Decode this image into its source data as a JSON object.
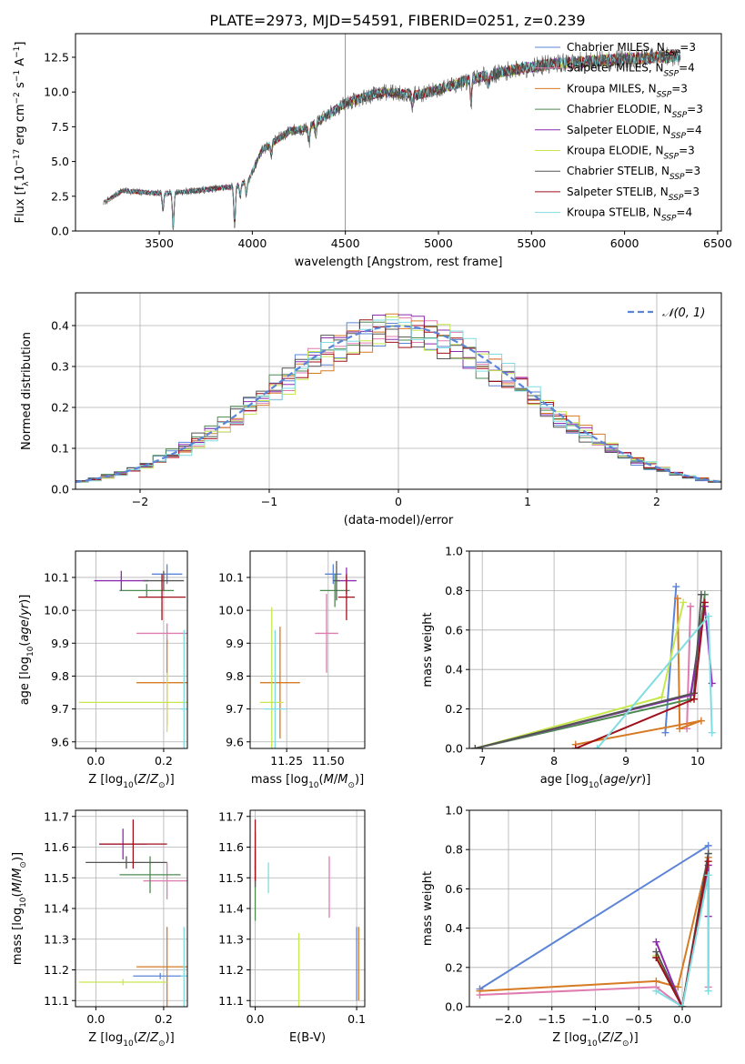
{
  "figure": {
    "title": "PLATE=2973, MJD=54591, FIBERID=0251, z=0.239"
  },
  "colors": {
    "chabrier_miles": "#5b84d6",
    "salpeter_miles": "#e07bb0",
    "kroupa_miles": "#d77a24",
    "chabrier_elodie": "#4d8a52",
    "salpeter_elodie": "#8e2bb0",
    "kroupa_elodie": "#c6e84d",
    "chabrier_stelib": "#555555",
    "salpeter_stelib": "#a0101a",
    "kroupa_stelib": "#7fdde2",
    "normal_curve": "#5b84d6",
    "grid": "#b0b0b0"
  },
  "chart_data": [
    {
      "id": "spectrum",
      "type": "line",
      "title": "PLATE=2973, MJD=54591, FIBERID=0251, z=0.239",
      "xlabel": "wavelength [Angstrom, rest frame]",
      "ylabel_parts": [
        "Flux [f",
        "λ",
        "10",
        "−17",
        " erg cm",
        "−2",
        " s",
        "−1",
        " A",
        "−1",
        "]"
      ],
      "xlim": [
        3050,
        6520
      ],
      "ylim": [
        0,
        14.2
      ],
      "xticks": [
        "3500",
        "4000",
        "4500",
        "5000",
        "5500",
        "6000",
        "6500"
      ],
      "yticks": [
        "0.0",
        "2.5",
        "5.0",
        "7.5",
        "10.0",
        "12.5"
      ],
      "grid": false,
      "legend_position": "top-right",
      "legend": [
        {
          "label": "Chabrier MILES, N",
          "sub": "SSP",
          "tail": "=3",
          "color_key": "chabrier_miles"
        },
        {
          "label": "Salpeter MILES, N",
          "sub": "SSP",
          "tail": "=4",
          "color_key": "salpeter_miles"
        },
        {
          "label": "Kroupa MILES, N",
          "sub": "SSP",
          "tail": "=3",
          "color_key": "kroupa_miles"
        },
        {
          "label": "Chabrier ELODIE, N",
          "sub": "SSP",
          "tail": "=3",
          "color_key": "chabrier_elodie"
        },
        {
          "label": "Salpeter ELODIE, N",
          "sub": "SSP",
          "tail": "=4",
          "color_key": "salpeter_elodie"
        },
        {
          "label": "Kroupa ELODIE, N",
          "sub": "SSP",
          "tail": "=3",
          "color_key": "kroupa_elodie"
        },
        {
          "label": "Chabrier STELIB, N",
          "sub": "SSP",
          "tail": "=3",
          "color_key": "chabrier_stelib"
        },
        {
          "label": "Salpeter STELIB, N",
          "sub": "SSP",
          "tail": "=3",
          "color_key": "salpeter_stelib"
        },
        {
          "label": "Kroupa STELIB, N",
          "sub": "SSP",
          "tail": "=4",
          "color_key": "kroupa_stelib"
        }
      ],
      "continuum": [
        [
          3200,
          2.0
        ],
        [
          3300,
          2.9
        ],
        [
          3500,
          2.7
        ],
        [
          3700,
          2.9
        ],
        [
          3900,
          3.2
        ],
        [
          3980,
          3.6
        ],
        [
          4050,
          5.8
        ],
        [
          4200,
          7.2
        ],
        [
          4300,
          7.4
        ],
        [
          4500,
          9.2
        ],
        [
          4700,
          10.0
        ],
        [
          4900,
          9.8
        ],
        [
          5000,
          10.2
        ],
        [
          5200,
          11.0
        ],
        [
          5400,
          11.6
        ],
        [
          5600,
          12.0
        ],
        [
          5800,
          12.2
        ],
        [
          6000,
          12.4
        ],
        [
          6200,
          12.5
        ],
        [
          6300,
          12.6
        ]
      ],
      "features": [
        [
          3520,
          -1.4
        ],
        [
          3575,
          -2.8
        ],
        [
          3905,
          -3.2
        ],
        [
          3935,
          -1.0
        ],
        [
          3968,
          -1.0
        ],
        [
          4102,
          -0.9
        ],
        [
          4305,
          -1.2
        ],
        [
          4340,
          -0.9
        ],
        [
          4861,
          -0.8
        ],
        [
          5175,
          -2.0
        ],
        [
          5270,
          -0.8
        ]
      ],
      "sky_line": {
        "x": 4500,
        "y_top": 14.2
      }
    },
    {
      "id": "residuals",
      "type": "histogram",
      "xlabel": "(data-model)/error",
      "ylabel": "Normed distribution",
      "xlim": [
        -2.5,
        2.5
      ],
      "ylim": [
        0,
        0.48
      ],
      "xticks": [
        "−2",
        "−1",
        "0",
        "1",
        "2"
      ],
      "yticks": [
        "0.0",
        "0.1",
        "0.2",
        "0.3",
        "0.4"
      ],
      "grid": true,
      "legend_position": "top-right",
      "legend": [
        {
          "label": "𝒩(0, 1)",
          "style": "dashed",
          "color_key": "normal_curve"
        }
      ],
      "bin_width": 0.1
    },
    {
      "id": "age_vs_metallicity",
      "type": "errorbar",
      "xlabel": "Z [log10(Z/Z⊙)]",
      "ylabel": "age  [log10(age/yr)]",
      "xlim": [
        -0.06,
        0.27
      ],
      "ylim": [
        9.58,
        10.18
      ],
      "xticks": [
        "0.0",
        "0.2"
      ],
      "yticks": [
        "9.6",
        "9.7",
        "9.8",
        "9.9",
        "10.0",
        "10.1"
      ],
      "grid": true,
      "points": [
        {
          "key": "chabrier_miles",
          "x": 0.21,
          "xerr": 0.045,
          "y": 10.11,
          "yerr": 0.03
        },
        {
          "key": "salpeter_miles",
          "x": 0.21,
          "xerr": 0.09,
          "y": 9.93,
          "yerr": 0.03
        },
        {
          "key": "kroupa_miles",
          "x": 0.21,
          "xerr": 0.09,
          "y": 9.78,
          "yerr": 0.13
        },
        {
          "key": "chabrier_elodie",
          "x": 0.15,
          "xerr": 0.08,
          "y": 10.06,
          "yerr": 0.02
        },
        {
          "key": "salpeter_elodie",
          "x": 0.075,
          "xerr": 0.08,
          "y": 10.09,
          "yerr": 0.03
        },
        {
          "key": "kroupa_elodie",
          "x": 0.21,
          "xerr": 0.26,
          "y": 9.72,
          "yerr": 0.09
        },
        {
          "key": "chabrier_stelib",
          "x": 0.2,
          "xerr": 0.06,
          "y": 10.09,
          "yerr": 0.03
        },
        {
          "key": "salpeter_stelib",
          "x": 0.195,
          "xerr": 0.07,
          "y": 10.04,
          "yerr": 0.07
        },
        {
          "key": "kroupa_stelib",
          "x": 0.26,
          "xerr": 0.01,
          "y": 9.7,
          "yerr": 0.24
        }
      ]
    },
    {
      "id": "age_vs_mass",
      "type": "errorbar",
      "xlabel": "mass [log10(M/M⊙)]",
      "ylabel": "",
      "xlim": [
        11.03,
        11.72
      ],
      "ylim": [
        9.58,
        10.18
      ],
      "xticks": [
        "11.25",
        "11.50"
      ],
      "yticks": [
        "9.6",
        "9.7",
        "9.8",
        "9.9",
        "10.0",
        "10.1"
      ],
      "grid": true,
      "points": [
        {
          "key": "chabrier_miles",
          "x": 11.53,
          "xerr": 0.05,
          "y": 10.11,
          "yerr": 0.03
        },
        {
          "key": "salpeter_miles",
          "x": 11.49,
          "xerr": 0.07,
          "y": 9.93,
          "yerr": 0.12
        },
        {
          "key": "kroupa_miles",
          "x": 11.21,
          "xerr": 0.12,
          "y": 9.78,
          "yerr": 0.17
        },
        {
          "key": "chabrier_elodie",
          "x": 11.54,
          "xerr": 0.09,
          "y": 10.06,
          "yerr": 0.05
        },
        {
          "key": "salpeter_elodie",
          "x": 11.61,
          "xerr": 0.06,
          "y": 10.09,
          "yerr": 0.04
        },
        {
          "key": "kroupa_elodie",
          "x": 11.16,
          "xerr": 0.07,
          "y": 9.72,
          "yerr": 0.29
        },
        {
          "key": "chabrier_stelib",
          "x": 11.55,
          "xerr": 0.02,
          "y": 10.09,
          "yerr": 0.06
        },
        {
          "key": "salpeter_stelib",
          "x": 11.61,
          "xerr": 0.05,
          "y": 10.04,
          "yerr": 0.07
        },
        {
          "key": "kroupa_stelib",
          "x": 11.18,
          "xerr": 0.07,
          "y": 9.7,
          "yerr": 0.24
        }
      ]
    },
    {
      "id": "mass_weight_vs_age",
      "type": "line",
      "xlabel": "age  [log10(age/yr)]",
      "ylabel": "mass weight",
      "xlim": [
        6.82,
        10.33
      ],
      "ylim": [
        0,
        1.0
      ],
      "xticks": [
        "7",
        "8",
        "9",
        "10"
      ],
      "yticks": [
        "0.0",
        "0.2",
        "0.4",
        "0.6",
        "0.8",
        "1.0"
      ],
      "grid": true,
      "series": [
        {
          "key": "chabrier_miles",
          "points": [
            [
              9.55,
              0.08
            ],
            [
              9.7,
              0.82
            ]
          ]
        },
        {
          "key": "salpeter_miles",
          "points": [
            [
              9.85,
              0.1
            ],
            [
              9.9,
              0.72
            ]
          ]
        },
        {
          "key": "kroupa_miles",
          "points": [
            [
              8.3,
              0.02
            ],
            [
              10.05,
              0.14
            ],
            [
              9.75,
              0.1
            ],
            [
              9.72,
              0.76
            ]
          ]
        },
        {
          "key": "chabrier_elodie",
          "points": [
            [
              6.9,
              0.0
            ],
            [
              9.9,
              0.25
            ],
            [
              10.1,
              0.78
            ]
          ]
        },
        {
          "key": "salpeter_elodie",
          "points": [
            [
              6.9,
              0.0
            ],
            [
              9.9,
              0.27
            ],
            [
              10.1,
              0.72
            ],
            [
              10.2,
              0.33
            ]
          ]
        },
        {
          "key": "kroupa_elodie",
          "points": [
            [
              6.9,
              0.0
            ],
            [
              9.5,
              0.26
            ],
            [
              9.8,
              0.74
            ]
          ]
        },
        {
          "key": "chabrier_stelib",
          "points": [
            [
              6.9,
              0.0
            ],
            [
              9.95,
              0.28
            ],
            [
              10.05,
              0.78
            ]
          ]
        },
        {
          "key": "salpeter_stelib",
          "points": [
            [
              8.3,
              0.0
            ],
            [
              9.95,
              0.25
            ],
            [
              10.1,
              0.74
            ]
          ]
        },
        {
          "key": "kroupa_stelib",
          "points": [
            [
              8.6,
              0.0
            ],
            [
              10.15,
              0.67
            ],
            [
              10.2,
              0.08
            ]
          ]
        }
      ]
    },
    {
      "id": "mass_vs_metallicity",
      "type": "errorbar",
      "xlabel": "Z [log10(Z/Z⊙)]",
      "ylabel": "mass [log10(M/M⊙)]",
      "xlim": [
        -0.06,
        0.27
      ],
      "ylim": [
        11.08,
        11.72
      ],
      "xticks": [
        "0.0",
        "0.2"
      ],
      "yticks": [
        "11.1",
        "11.2",
        "11.3",
        "11.4",
        "11.5",
        "11.6",
        "11.7"
      ],
      "grid": true,
      "points": [
        {
          "key": "chabrier_miles",
          "x": 0.19,
          "xerr": 0.08,
          "y": 11.18,
          "yerr": 0.01
        },
        {
          "key": "salpeter_miles",
          "x": 0.21,
          "xerr": 0.07,
          "y": 11.49,
          "yerr": 0.06
        },
        {
          "key": "kroupa_miles",
          "x": 0.21,
          "xerr": 0.09,
          "y": 11.21,
          "yerr": 0.13
        },
        {
          "key": "chabrier_elodie",
          "x": 0.16,
          "xerr": 0.09,
          "y": 11.51,
          "yerr": 0.06
        },
        {
          "key": "salpeter_elodie",
          "x": 0.08,
          "xerr": 0.07,
          "y": 11.61,
          "yerr": 0.05
        },
        {
          "key": "kroupa_elodie",
          "x": 0.08,
          "xerr": 0.13,
          "y": 11.16,
          "yerr": 0.01
        },
        {
          "key": "chabrier_stelib",
          "x": 0.09,
          "xerr": 0.12,
          "y": 11.55,
          "yerr": 0.02
        },
        {
          "key": "salpeter_stelib",
          "x": 0.11,
          "xerr": 0.1,
          "y": 11.61,
          "yerr": 0.08
        },
        {
          "key": "kroupa_stelib",
          "x": 0.26,
          "xerr": 0.01,
          "y": 11.18,
          "yerr": 0.16
        }
      ]
    },
    {
      "id": "mass_vs_ebv",
      "type": "errorbar",
      "xlabel": "E(B-V)",
      "ylabel": "",
      "xlim": [
        -0.005,
        0.108
      ],
      "ylim": [
        11.08,
        11.72
      ],
      "xticks": [
        "0.0",
        "0.1"
      ],
      "yticks": [
        "11.1",
        "11.2",
        "11.3",
        "11.4",
        "11.5",
        "11.6",
        "11.7"
      ],
      "grid": true,
      "points": [
        {
          "key": "chabrier_miles",
          "x": 0.1,
          "xerr": 0.0,
          "y": 11.22,
          "yerr": 0.12
        },
        {
          "key": "salpeter_miles",
          "x": 0.073,
          "xerr": 0.0,
          "y": 11.47,
          "yerr": 0.1
        },
        {
          "key": "kroupa_miles",
          "x": 0.102,
          "xerr": 0.0,
          "y": 11.22,
          "yerr": 0.12
        },
        {
          "key": "chabrier_elodie",
          "x": 0.0,
          "xerr": 0.0,
          "y": 11.45,
          "yerr": 0.09
        },
        {
          "key": "salpeter_elodie",
          "x": 0.0,
          "xerr": 0.0,
          "y": 11.59,
          "yerr": 0.06
        },
        {
          "key": "kroupa_elodie",
          "x": 0.043,
          "xerr": 0.0,
          "y": 11.2,
          "yerr": 0.12
        },
        {
          "key": "chabrier_stelib",
          "x": 0.0,
          "xerr": 0.0,
          "y": 11.53,
          "yerr": 0.06
        },
        {
          "key": "salpeter_stelib",
          "x": 0.0,
          "xerr": 0.0,
          "y": 11.59,
          "yerr": 0.1
        },
        {
          "key": "kroupa_stelib",
          "x": 0.013,
          "xerr": 0.0,
          "y": 11.5,
          "yerr": 0.05
        }
      ]
    },
    {
      "id": "mass_weight_vs_metallicity",
      "type": "line",
      "xlabel": "Z [log10(Z/Z⊙)]",
      "ylabel": "mass weight",
      "xlim": [
        -2.45,
        0.45
      ],
      "ylim": [
        0,
        1.0
      ],
      "xticks": [
        "−2.0",
        "−1.5",
        "−1.0",
        "−0.5",
        "0.0"
      ],
      "yticks": [
        "0.0",
        "0.2",
        "0.4",
        "0.6",
        "0.8",
        "1.0"
      ],
      "grid": true,
      "series": [
        {
          "key": "chabrier_miles",
          "points": [
            [
              -2.33,
              0.09
            ],
            [
              0.3,
              0.82
            ]
          ]
        },
        {
          "key": "kroupa_miles",
          "points": [
            [
              -2.33,
              0.08
            ],
            [
              -0.3,
              0.13
            ],
            [
              -0.05,
              0.1
            ],
            [
              0.3,
              0.76
            ]
          ]
        },
        {
          "key": "salpeter_miles",
          "points": [
            [
              -2.33,
              0.06
            ],
            [
              -0.3,
              0.1
            ],
            [
              0.0,
              0.0
            ],
            [
              0.3,
              0.72
            ],
            [
              0.3,
              0.1
            ]
          ]
        },
        {
          "key": "chabrier_elodie",
          "points": [
            [
              -0.3,
              0.25
            ],
            [
              0.0,
              0.0
            ],
            [
              0.3,
              0.78
            ]
          ]
        },
        {
          "key": "salpeter_elodie",
          "points": [
            [
              -0.3,
              0.33
            ],
            [
              0.0,
              0.0
            ],
            [
              0.3,
              0.72
            ],
            [
              0.3,
              0.46
            ]
          ]
        },
        {
          "key": "kroupa_elodie",
          "points": [
            [
              -0.3,
              0.26
            ],
            [
              0.0,
              0.0
            ],
            [
              0.3,
              0.74
            ]
          ]
        },
        {
          "key": "chabrier_stelib",
          "points": [
            [
              -0.3,
              0.28
            ],
            [
              0.0,
              0.0
            ],
            [
              0.3,
              0.78
            ]
          ]
        },
        {
          "key": "salpeter_stelib",
          "points": [
            [
              -0.3,
              0.25
            ],
            [
              0.0,
              0.0
            ],
            [
              0.3,
              0.74
            ]
          ]
        },
        {
          "key": "kroupa_stelib",
          "points": [
            [
              -0.3,
              0.08
            ],
            [
              0.0,
              0.0
            ],
            [
              0.3,
              0.67
            ],
            [
              0.3,
              0.08
            ]
          ]
        }
      ]
    }
  ]
}
